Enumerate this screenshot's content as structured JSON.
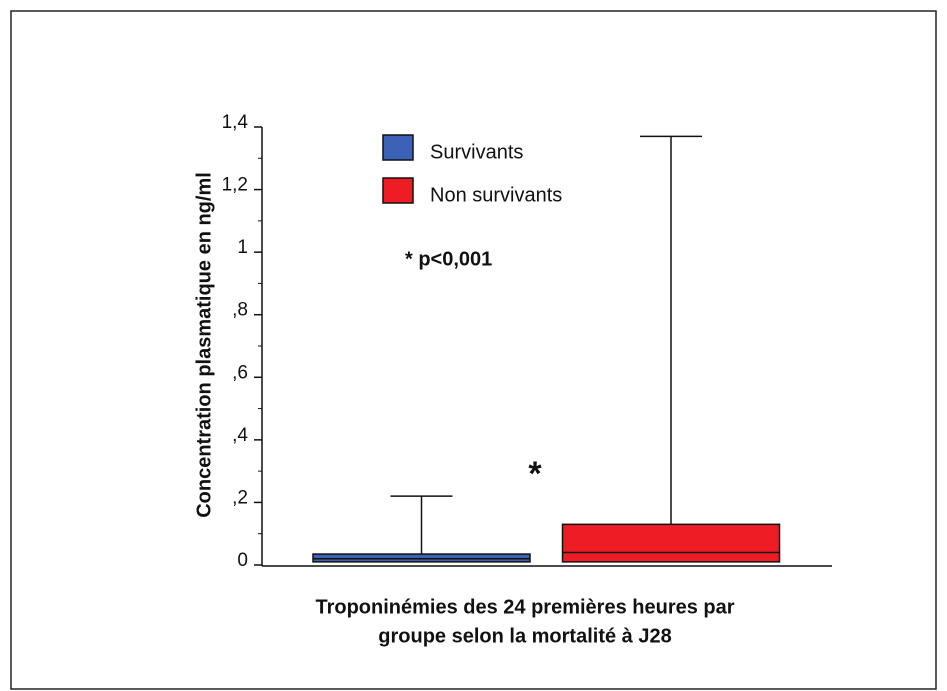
{
  "chart_data": {
    "type": "box",
    "ylabel": "Concentration plasmatique en ng/ml",
    "xlabel": [
      "Troponinémies des 24 premières heures par",
      "groupe selon la mortalité à J28"
    ],
    "annotations": [
      "* p<0,001",
      "*"
    ],
    "ylim": [
      0,
      1.4
    ],
    "yticks": [
      0,
      {
        "value": 0.2,
        "label": ",2"
      },
      {
        "value": 0.4,
        "label": ",4"
      },
      {
        "value": 0.6,
        "label": ",6"
      },
      {
        "value": 0.8,
        "label": ",8"
      },
      1,
      {
        "value": 1.2,
        "label": "1,2"
      },
      {
        "value": 1.4,
        "label": "1,4"
      }
    ],
    "yminor": [
      0.1,
      0.3,
      0.5,
      0.7,
      0.9,
      1.1,
      1.3
    ],
    "series": [
      {
        "name": "Survivants",
        "color": "#3b62b5",
        "q1": 0.01,
        "median": 0.02,
        "q3": 0.035,
        "whisker_high": 0.22
      },
      {
        "name": "Non survivants",
        "color": "#ee1c24",
        "q1": 0.01,
        "median": 0.04,
        "q3": 0.13,
        "whisker_high": 1.37
      }
    ]
  }
}
